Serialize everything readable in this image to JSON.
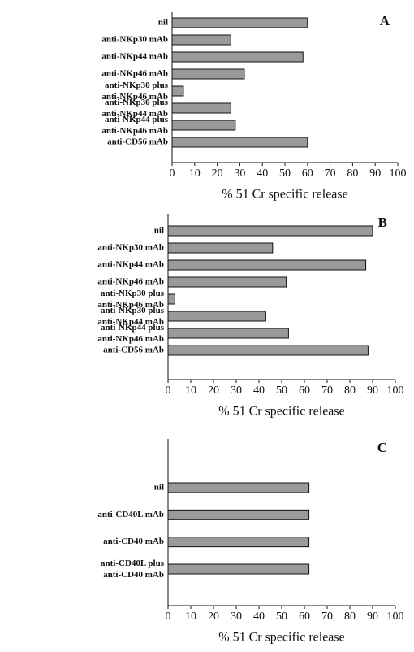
{
  "chart_data": [
    {
      "type": "bar",
      "annotation": "A",
      "categories": [
        "nil",
        "anti-NKp30 mAb",
        "anti-NKp44 mAb",
        "anti-NKp46 mAb",
        "anti-NKp30 plus anti-NKp46 mAb",
        "anti-NKp30 plus anti-NKp44 mAb",
        "anti-NKp44 plus anti-NKp46 mAb",
        "anti-CD56 mAb"
      ],
      "values": [
        60,
        26,
        58,
        32,
        5,
        26,
        28,
        60
      ],
      "color": "#9a9a9a",
      "xlim": [
        0,
        100
      ],
      "xticks": [
        0,
        10,
        20,
        30,
        40,
        50,
        60,
        70,
        80,
        90,
        100
      ],
      "xlabel": "% 51 Cr specific release"
    },
    {
      "type": "bar",
      "annotation": "B",
      "categories": [
        "nil",
        "anti-NKp30 mAb",
        "anti-NKp44 mAb",
        "anti-NKp46 mAb",
        "anti-NKp30 plus anti-NKp46 mAb",
        "anti-NKp30 plus anti-NKp44 mAb",
        "anti-NKp44 plus anti-NKp46 mAb",
        "anti-CD56 mAb"
      ],
      "values": [
        90,
        46,
        87,
        52,
        3,
        43,
        53,
        88
      ],
      "color": "#9a9a9a",
      "xlim": [
        0,
        100
      ],
      "xticks": [
        0,
        10,
        20,
        30,
        40,
        50,
        60,
        70,
        80,
        90,
        100
      ],
      "xlabel": "% 51 Cr specific release"
    },
    {
      "type": "bar",
      "annotation": "C",
      "categories": [
        "nil",
        "anti-CD40L mAb",
        "anti-CD40 mAb",
        "anti-CD40L plus anti-CD40 mAb"
      ],
      "values": [
        62,
        62,
        62,
        62
      ],
      "color": "#9a9a9a",
      "xlim": [
        0,
        100
      ],
      "xticks": [
        0,
        10,
        20,
        30,
        40,
        50,
        60,
        70,
        80,
        90,
        100
      ],
      "xlabel": "% 51 Cr specific release"
    }
  ]
}
